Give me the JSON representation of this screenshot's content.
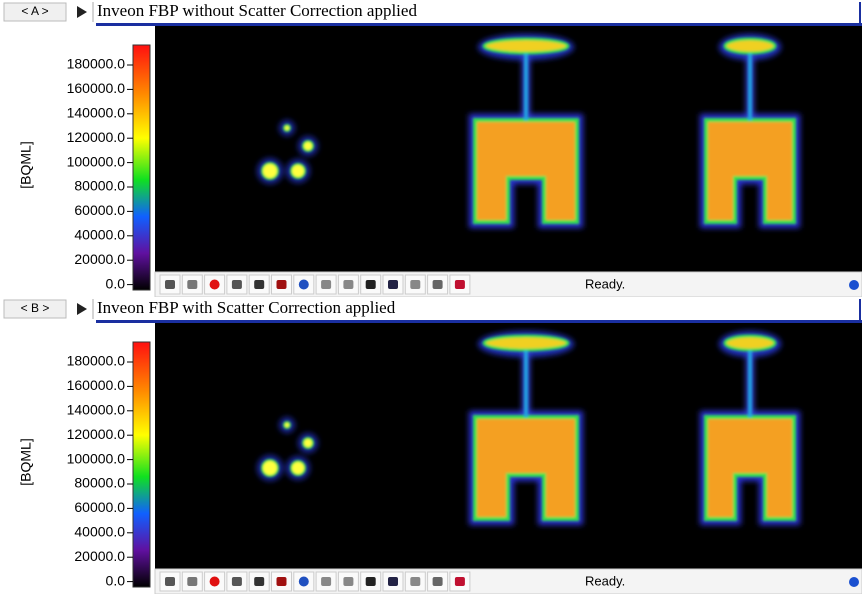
{
  "panels": [
    {
      "tab": "< A >",
      "title": "Inveon FBP without Scatter Correction applied",
      "colorbar_label": "[BQML]",
      "colorbar_ticks": [
        "180000.0",
        "160000.0",
        "140000.0",
        "120000.0",
        "100000.0",
        "80000.0",
        "60000.0",
        "40000.0",
        "20000.0",
        "0.0"
      ],
      "status": "Ready."
    },
    {
      "tab": "< B >",
      "title": "Inveon FBP with Scatter Correction applied",
      "colorbar_label": "[BQML]",
      "colorbar_ticks": [
        "180000.0",
        "160000.0",
        "140000.0",
        "120000.0",
        "100000.0",
        "80000.0",
        "60000.0",
        "40000.0",
        "20000.0",
        "0.0"
      ],
      "status": "Ready."
    }
  ]
}
